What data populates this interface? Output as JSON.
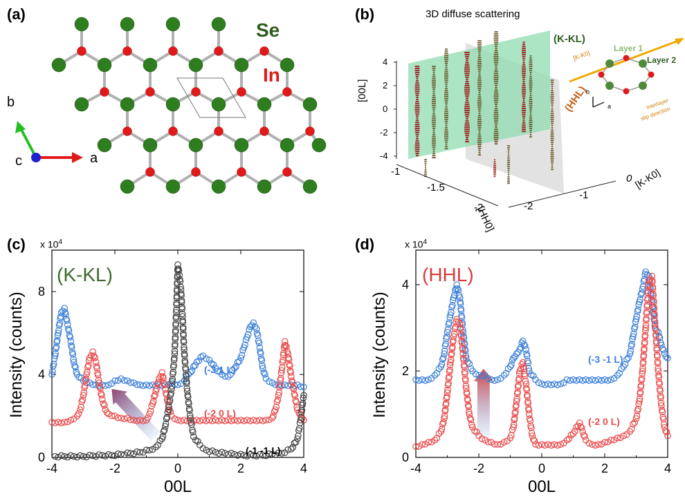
{
  "panel_a": {
    "label": "(a)",
    "se_label": "Se",
    "in_label": "In",
    "axis_a": "a",
    "axis_b": "b",
    "axis_c": "c",
    "colors": {
      "se": "#2e7d1f",
      "in": "#e01a1a",
      "bond": "#b0b0b0"
    }
  },
  "panel_b": {
    "label": "(b)",
    "title": "3D diffuse scattering",
    "plane_kkl": "(K-KL)",
    "plane_hhl": "(HHL)",
    "zaxis_label": "[00L]",
    "zaxis_ticks": [
      "4",
      "2",
      "0",
      "-2",
      "-4"
    ],
    "hh0_label": "[HH0]",
    "hh0_ticks": [
      "-1",
      "-1.5",
      "-2"
    ],
    "kk0_label": "[K-K0]",
    "kk0_ticks": [
      "0",
      "-1",
      "-2"
    ],
    "inset": {
      "layer1": "Layer 1",
      "layer2": "Layer 2",
      "kk0": "[K-K0]",
      "slip1": "Interlayer",
      "slip2": "slip direction",
      "b": "b",
      "a": "a"
    }
  },
  "chart_data": [
    {
      "panel": "(c)",
      "type": "scatter",
      "inset_label": "(K-KL)",
      "scale_label": "x 10",
      "scale_exp": "4",
      "xlabel": "00L",
      "ylabel": "Intensity (counts)",
      "xlim": [
        -4,
        4
      ],
      "ylim": [
        0,
        10
      ],
      "xticks": [
        "-4",
        "-2",
        "0",
        "2",
        "4"
      ],
      "yticks": [
        "0",
        "4",
        "8"
      ],
      "annotation_arrow": {
        "from": [
          -0.7,
          1.0
        ],
        "to": [
          -2.1,
          3.3
        ],
        "color": "#8a3a66"
      },
      "series": [
        {
          "name": "(-3 1 L)",
          "color": "#3b7fd6",
          "x": [
            -4.0,
            -3.9,
            -3.8,
            -3.7,
            -3.6,
            -3.5,
            -3.4,
            -3.3,
            -3.2,
            -3.0,
            -2.8,
            -2.6,
            -2.4,
            -2.2,
            -2.0,
            -1.8,
            -1.6,
            -1.4,
            -1.2,
            -1.0,
            -0.8,
            -0.6,
            -0.4,
            -0.2,
            0.0,
            0.2,
            0.4,
            0.6,
            0.8,
            1.0,
            1.2,
            1.4,
            1.6,
            1.8,
            2.0,
            2.1,
            2.2,
            2.3,
            2.4,
            2.5,
            2.6,
            2.7,
            2.8,
            3.0,
            3.2,
            3.4,
            3.6,
            3.8,
            4.0
          ],
          "y": [
            4.0,
            4.9,
            6.0,
            7.0,
            7.2,
            6.4,
            5.6,
            4.6,
            4.0,
            3.7,
            3.6,
            3.5,
            3.5,
            3.5,
            3.7,
            3.8,
            3.7,
            3.6,
            3.5,
            3.5,
            3.5,
            3.5,
            3.5,
            3.6,
            3.5,
            3.7,
            4.1,
            4.6,
            4.9,
            4.7,
            4.3,
            4.0,
            3.9,
            4.3,
            4.8,
            5.3,
            5.8,
            6.3,
            6.5,
            6.2,
            5.3,
            4.3,
            3.8,
            3.6,
            3.5,
            3.5,
            3.5,
            3.5,
            3.4
          ]
        },
        {
          "name": "(-2 0 L)",
          "color": "#e84a4a",
          "x": [
            -4.0,
            -3.8,
            -3.6,
            -3.4,
            -3.2,
            -3.1,
            -3.0,
            -2.9,
            -2.8,
            -2.7,
            -2.6,
            -2.5,
            -2.4,
            -2.3,
            -2.2,
            -2.0,
            -1.8,
            -1.6,
            -1.4,
            -1.2,
            -1.0,
            -0.9,
            -0.8,
            -0.7,
            -0.6,
            -0.5,
            -0.4,
            -0.3,
            -0.2,
            0.0,
            0.2,
            0.4,
            0.6,
            0.8,
            1.0,
            1.2,
            1.4,
            1.6,
            1.8,
            2.0,
            2.2,
            2.4,
            2.6,
            2.8,
            3.0,
            3.1,
            3.2,
            3.3,
            3.4,
            3.5,
            3.6,
            3.8,
            4.0
          ],
          "y": [
            1.7,
            1.7,
            1.7,
            1.8,
            2.0,
            2.3,
            3.0,
            4.0,
            4.8,
            5.1,
            4.6,
            3.6,
            2.8,
            2.3,
            2.1,
            2.0,
            1.9,
            1.9,
            1.8,
            1.8,
            1.8,
            2.1,
            2.6,
            3.2,
            3.8,
            4.1,
            3.3,
            2.5,
            2.0,
            1.8,
            1.8,
            1.8,
            1.8,
            1.8,
            1.8,
            1.8,
            1.8,
            1.8,
            1.8,
            1.8,
            1.8,
            1.8,
            1.8,
            1.8,
            1.9,
            2.3,
            3.0,
            4.2,
            5.6,
            5.0,
            3.9,
            2.3,
            1.8
          ]
        },
        {
          "name": "(-1 -1 L)",
          "color": "#444444",
          "x": [
            -3.9,
            -3.6,
            -3.3,
            -3.0,
            -2.7,
            -2.4,
            -2.1,
            -1.8,
            -1.5,
            -1.2,
            -0.9,
            -0.7,
            -0.5,
            -0.4,
            -0.3,
            -0.2,
            -0.1,
            -0.05,
            0.0,
            0.05,
            0.1,
            0.15,
            0.2,
            0.3,
            0.4,
            0.5,
            0.7,
            0.9,
            1.2,
            1.5,
            1.8,
            2.1,
            2.4,
            2.7,
            3.0,
            3.3,
            3.6,
            3.8,
            3.9,
            4.0
          ],
          "y": [
            0.05,
            0.05,
            0.05,
            0.05,
            0.08,
            0.1,
            0.1,
            0.15,
            0.2,
            0.25,
            0.35,
            0.5,
            0.9,
            1.5,
            2.3,
            3.3,
            5.0,
            7.0,
            9.3,
            8.8,
            8.1,
            6.8,
            5.2,
            3.2,
            1.9,
            1.0,
            0.6,
            0.35,
            0.25,
            0.2,
            0.15,
            0.1,
            0.1,
            0.1,
            0.15,
            0.2,
            0.4,
            0.9,
            1.8,
            3.0
          ]
        }
      ]
    },
    {
      "panel": "(d)",
      "type": "scatter",
      "inset_label": "(HHL)",
      "scale_label": "x 10",
      "scale_exp": "4",
      "xlabel": "00L",
      "ylabel": "Intensity (counts)",
      "xlim": [
        -4,
        4
      ],
      "ylim": [
        0,
        4.8
      ],
      "xticks": [
        "-4",
        "-2",
        "0",
        "2",
        "4"
      ],
      "yticks": [
        "0",
        "2",
        "4"
      ],
      "annotation_arrow": {
        "from": [
          -1.85,
          0.45
        ],
        "to": [
          -1.85,
          2.05
        ],
        "color": "#d63c3c"
      },
      "series": [
        {
          "name": "(-3 -1 L)",
          "color": "#3b7fd6",
          "x": [
            -4.0,
            -3.8,
            -3.6,
            -3.4,
            -3.2,
            -3.1,
            -3.0,
            -2.9,
            -2.8,
            -2.7,
            -2.6,
            -2.5,
            -2.4,
            -2.2,
            -2.0,
            -1.8,
            -1.6,
            -1.4,
            -1.2,
            -1.0,
            -0.9,
            -0.8,
            -0.7,
            -0.6,
            -0.5,
            -0.4,
            -0.2,
            0.0,
            0.2,
            0.4,
            0.6,
            0.8,
            1.0,
            1.2,
            1.4,
            1.6,
            1.8,
            2.0,
            2.2,
            2.4,
            2.6,
            2.8,
            2.9,
            3.0,
            3.1,
            3.2,
            3.3,
            3.4,
            3.5,
            3.6,
            3.7,
            3.8,
            3.9,
            4.0
          ],
          "y": [
            1.8,
            1.8,
            1.8,
            1.9,
            2.1,
            2.4,
            2.9,
            3.3,
            3.7,
            4.0,
            3.7,
            2.9,
            2.3,
            2.0,
            1.9,
            1.9,
            1.8,
            1.8,
            1.9,
            2.1,
            2.3,
            2.4,
            2.5,
            2.7,
            2.5,
            2.0,
            1.8,
            1.7,
            1.7,
            1.7,
            1.7,
            1.8,
            1.8,
            1.8,
            1.8,
            1.8,
            1.8,
            1.8,
            1.8,
            1.9,
            2.1,
            2.4,
            2.8,
            3.2,
            3.6,
            3.9,
            4.3,
            4.2,
            3.6,
            3.0,
            2.9,
            2.6,
            2.4,
            2.3
          ]
        },
        {
          "name": "(-2 0 L)",
          "color": "#e84a4a",
          "x": [
            -4.0,
            -3.8,
            -3.6,
            -3.4,
            -3.2,
            -3.1,
            -3.0,
            -2.9,
            -2.8,
            -2.7,
            -2.6,
            -2.5,
            -2.4,
            -2.3,
            -2.2,
            -2.0,
            -1.8,
            -1.6,
            -1.4,
            -1.2,
            -1.0,
            -0.9,
            -0.8,
            -0.7,
            -0.6,
            -0.5,
            -0.4,
            -0.3,
            -0.2,
            0.0,
            0.2,
            0.4,
            0.6,
            0.8,
            1.0,
            1.1,
            1.2,
            1.3,
            1.4,
            1.6,
            1.8,
            2.0,
            2.2,
            2.4,
            2.6,
            2.8,
            3.0,
            3.1,
            3.2,
            3.3,
            3.4,
            3.5,
            3.6,
            3.7,
            3.8,
            3.9,
            4.0
          ],
          "y": [
            0.25,
            0.3,
            0.35,
            0.4,
            0.6,
            0.9,
            1.5,
            2.2,
            2.8,
            3.2,
            3.1,
            2.4,
            1.6,
            1.0,
            0.7,
            0.5,
            0.4,
            0.35,
            0.3,
            0.35,
            0.45,
            0.7,
            1.3,
            2.0,
            2.2,
            1.7,
            1.0,
            0.5,
            0.3,
            0.3,
            0.3,
            0.3,
            0.3,
            0.4,
            0.55,
            0.7,
            0.8,
            0.6,
            0.4,
            0.3,
            0.3,
            0.35,
            0.4,
            0.45,
            0.5,
            0.6,
            0.9,
            1.3,
            2.0,
            3.0,
            4.1,
            4.2,
            3.1,
            2.0,
            1.2,
            0.7,
            0.5
          ]
        }
      ]
    }
  ]
}
